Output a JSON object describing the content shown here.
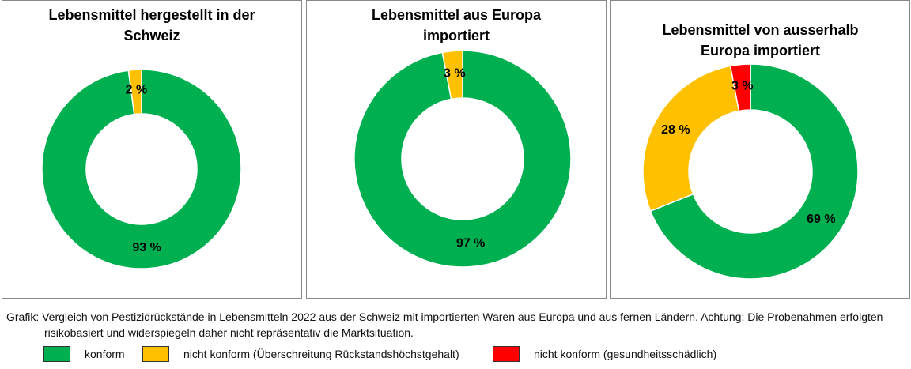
{
  "chart_data": [
    {
      "type": "pie",
      "title": "Lebensmittel hergestellt in der Schweiz",
      "values": [
        93,
        2
      ],
      "value_labels": [
        "93 %",
        "2 %"
      ],
      "colors": [
        "#00b050",
        "#ffc000"
      ]
    },
    {
      "type": "pie",
      "title": "Lebensmittel aus Europa importiert",
      "values": [
        97,
        3
      ],
      "value_labels": [
        "97 %",
        "3 %"
      ],
      "colors": [
        "#00b050",
        "#ffc000"
      ]
    },
    {
      "type": "pie",
      "title": "Lebensmittel von ausserhalb Europa importiert",
      "values": [
        69,
        28,
        3
      ],
      "value_labels": [
        "69 %",
        "28 %",
        "3 %"
      ],
      "colors": [
        "#00b050",
        "#ffc000",
        "#ff0000"
      ]
    }
  ],
  "caption": "Grafik: Vergleich von Pestizidrückstände in Lebensmitteln 2022 aus der Schweiz mit importierten Waren aus Europa und aus fernen Ländern. Achtung: Die Probenahmen erfolgten risikobasiert und widerspiegeln daher nicht repräsentativ die Marktsituation.",
  "legend": [
    {
      "name": "konform",
      "color": "#00b050"
    },
    {
      "name": "nicht konform (Überschreitung Rückstandshöchstgehalt)",
      "color": "#ffc000"
    },
    {
      "name": "nicht konform (gesundheitsschädlich)",
      "color": "#ff0000"
    }
  ]
}
